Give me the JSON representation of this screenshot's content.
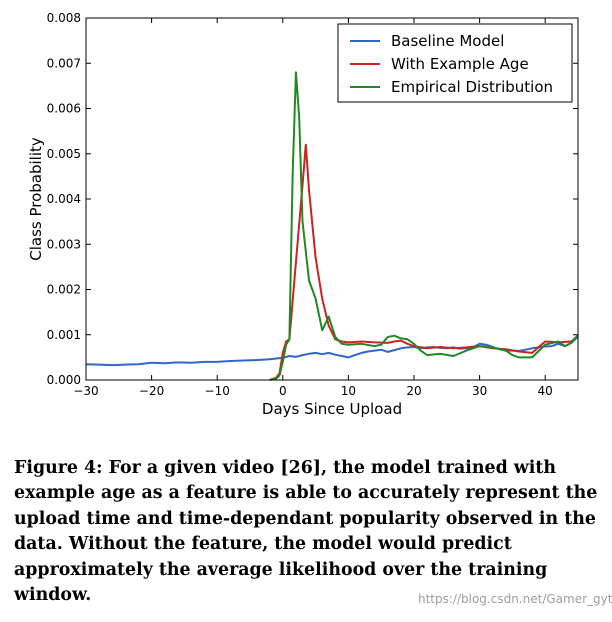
{
  "chart_data": {
    "type": "line",
    "title": "",
    "xlabel": "Days Since Upload",
    "ylabel": "Class Probability",
    "xlim": [
      -30,
      45
    ],
    "ylim": [
      0,
      0.008
    ],
    "xticks": [
      -30,
      -20,
      -10,
      0,
      10,
      20,
      30,
      40
    ],
    "yticks": [
      0.0,
      0.001,
      0.002,
      0.003,
      0.004,
      0.005,
      0.006,
      0.007,
      0.008
    ],
    "xtick_labels": [
      "−30",
      "−20",
      "−10",
      "0",
      "10",
      "20",
      "30",
      "40"
    ],
    "ytick_labels": [
      "0.000",
      "0.001",
      "0.002",
      "0.003",
      "0.004",
      "0.005",
      "0.006",
      "0.007",
      "0.008"
    ],
    "grid": false,
    "legend_position": "top-right",
    "series": [
      {
        "name": "Baseline Model",
        "color": "#3366cc",
        "x": [
          -30,
          -28,
          -26,
          -24,
          -22,
          -20,
          -18,
          -16,
          -14,
          -12,
          -10,
          -8,
          -6,
          -4,
          -2,
          0,
          1,
          2,
          3,
          4,
          5,
          6,
          7,
          8,
          9,
          10,
          11,
          12,
          13,
          14,
          15,
          16,
          17,
          18,
          19,
          20,
          21,
          22,
          23,
          24,
          25,
          26,
          27,
          28,
          29,
          30,
          31,
          32,
          33,
          34,
          35,
          36,
          37,
          38,
          39,
          40,
          41,
          42,
          43,
          44,
          45
        ],
        "y": [
          0.00035,
          0.00034,
          0.00033,
          0.00034,
          0.00035,
          0.00038,
          0.00037,
          0.00039,
          0.00038,
          0.0004,
          0.0004,
          0.00042,
          0.00043,
          0.00044,
          0.00046,
          0.00049,
          0.00053,
          0.00051,
          0.00055,
          0.00058,
          0.0006,
          0.00057,
          0.0006,
          0.00056,
          0.00053,
          0.0005,
          0.00055,
          0.0006,
          0.00063,
          0.00065,
          0.00067,
          0.00062,
          0.00066,
          0.0007,
          0.00072,
          0.00073,
          0.0007,
          0.00072,
          0.00073,
          0.00071,
          0.0007,
          0.00072,
          0.00069,
          0.0007,
          0.00072,
          0.0008,
          0.00078,
          0.00073,
          0.00068,
          0.00065,
          0.00065,
          0.00064,
          0.00067,
          0.0007,
          0.00072,
          0.00074,
          0.00075,
          0.0008,
          0.00075,
          0.00082,
          0.00096
        ]
      },
      {
        "name": "With Example Age",
        "color": "#cc2222",
        "x": [
          -2,
          -1,
          -0.5,
          0,
          0.5,
          1,
          2,
          3,
          3.5,
          4,
          5,
          6,
          7,
          8,
          9,
          10,
          12,
          14,
          16,
          17,
          18,
          19,
          20,
          22,
          24,
          26,
          28,
          30,
          32,
          34,
          36,
          38,
          40,
          42,
          44,
          45
        ],
        "y": [
          0.0,
          5e-05,
          0.00015,
          0.0006,
          0.00085,
          0.0009,
          0.0026,
          0.0043,
          0.0052,
          0.0042,
          0.0027,
          0.0018,
          0.0012,
          0.0009,
          0.00085,
          0.00083,
          0.00085,
          0.00083,
          0.00082,
          0.00085,
          0.00087,
          0.0008,
          0.00075,
          0.0007,
          0.00073,
          0.0007,
          0.00072,
          0.00075,
          0.0007,
          0.00068,
          0.00063,
          0.0006,
          0.00085,
          0.00083,
          0.00085,
          0.00098
        ]
      },
      {
        "name": "Empirical Distribution",
        "color": "#228822",
        "x": [
          -2,
          -1,
          -0.5,
          0,
          0.5,
          1,
          1.5,
          2,
          2.5,
          3,
          4,
          5,
          6,
          7,
          8,
          9,
          10,
          12,
          14,
          15,
          16,
          17,
          18,
          19,
          20,
          21,
          22,
          24,
          26,
          28,
          30,
          32,
          34,
          35,
          36,
          38,
          40,
          42,
          43,
          44,
          45
        ],
        "y": [
          0.0,
          3e-05,
          0.0001,
          0.0004,
          0.00078,
          0.0009,
          0.0045,
          0.0068,
          0.0058,
          0.0035,
          0.0022,
          0.0018,
          0.0011,
          0.0014,
          0.00095,
          0.0008,
          0.00078,
          0.0008,
          0.00075,
          0.00078,
          0.00095,
          0.00098,
          0.00092,
          0.0009,
          0.0008,
          0.00065,
          0.00055,
          0.00058,
          0.00053,
          0.00065,
          0.00075,
          0.00072,
          0.00065,
          0.00055,
          0.0005,
          0.0005,
          0.00078,
          0.00085,
          0.00075,
          0.00082,
          0.001
        ]
      }
    ]
  },
  "caption": "Figure 4: For a given video [26], the model trained with example age as a feature is able to accurately represent the upload time and time-dependant popularity observed in the data. Without the feature, the model would predict approximately the average likelihood over the training window.",
  "watermark": "https://blog.csdn.net/Gamer_gyt"
}
